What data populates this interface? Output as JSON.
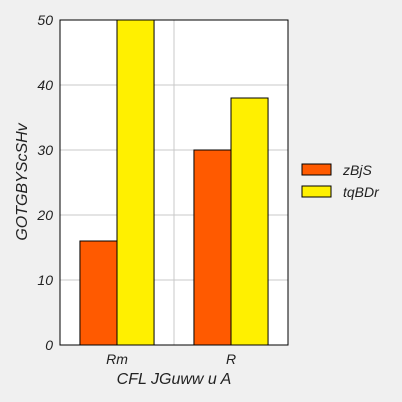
{
  "chart_data": {
    "type": "bar",
    "categories": [
      "Rm",
      "R"
    ],
    "series": [
      {
        "name": "zBjS",
        "values": [
          16,
          30
        ],
        "color": "#ff5a00"
      },
      {
        "name": "tqBDr",
        "values": [
          50,
          38
        ],
        "color": "#fff000"
      }
    ],
    "xlabel": "CFL JGuww u A",
    "ylabel": "GOTGBYScSHv",
    "ylim": [
      0,
      50
    ],
    "yticks": [
      0,
      10,
      20,
      30,
      40,
      50
    ],
    "grid": true,
    "legend_position": "right"
  }
}
